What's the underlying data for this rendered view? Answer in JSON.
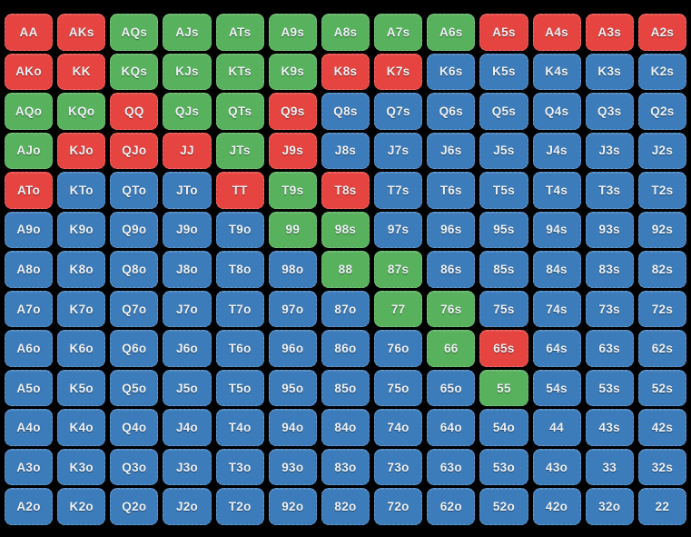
{
  "colors": {
    "background": "#000000",
    "text": "#edf1f5",
    "red": "#e64440",
    "green": "#58b15d",
    "blue": "#3d7cba"
  },
  "chart_data": {
    "type": "heatmap",
    "description": "13x13 poker starting-hand range matrix; pairs on the diagonal, suited hands above, offsuit hands below; each cell colored by action category",
    "x_labels": [
      "A",
      "K",
      "Q",
      "J",
      "T",
      "9",
      "8",
      "7",
      "6",
      "5",
      "4",
      "3",
      "2"
    ],
    "y_labels": [
      "A",
      "K",
      "Q",
      "J",
      "T",
      "9",
      "8",
      "7",
      "6",
      "5",
      "4",
      "3",
      "2"
    ],
    "category_colors": {
      "red": "#e64440",
      "green": "#58b15d",
      "blue": "#3d7cba"
    },
    "cells": [
      [
        {
          "label": "AA",
          "color": "red"
        },
        {
          "label": "AKs",
          "color": "red"
        },
        {
          "label": "AQs",
          "color": "green"
        },
        {
          "label": "AJs",
          "color": "green"
        },
        {
          "label": "ATs",
          "color": "green"
        },
        {
          "label": "A9s",
          "color": "green"
        },
        {
          "label": "A8s",
          "color": "green"
        },
        {
          "label": "A7s",
          "color": "green"
        },
        {
          "label": "A6s",
          "color": "green"
        },
        {
          "label": "A5s",
          "color": "red"
        },
        {
          "label": "A4s",
          "color": "red"
        },
        {
          "label": "A3s",
          "color": "red"
        },
        {
          "label": "A2s",
          "color": "red"
        }
      ],
      [
        {
          "label": "AKo",
          "color": "red"
        },
        {
          "label": "KK",
          "color": "red"
        },
        {
          "label": "KQs",
          "color": "green"
        },
        {
          "label": "KJs",
          "color": "green"
        },
        {
          "label": "KTs",
          "color": "green"
        },
        {
          "label": "K9s",
          "color": "green"
        },
        {
          "label": "K8s",
          "color": "red"
        },
        {
          "label": "K7s",
          "color": "red"
        },
        {
          "label": "K6s",
          "color": "blue"
        },
        {
          "label": "K5s",
          "color": "blue"
        },
        {
          "label": "K4s",
          "color": "blue"
        },
        {
          "label": "K3s",
          "color": "blue"
        },
        {
          "label": "K2s",
          "color": "blue"
        }
      ],
      [
        {
          "label": "AQo",
          "color": "green"
        },
        {
          "label": "KQo",
          "color": "green"
        },
        {
          "label": "QQ",
          "color": "red"
        },
        {
          "label": "QJs",
          "color": "green"
        },
        {
          "label": "QTs",
          "color": "green"
        },
        {
          "label": "Q9s",
          "color": "red"
        },
        {
          "label": "Q8s",
          "color": "blue"
        },
        {
          "label": "Q7s",
          "color": "blue"
        },
        {
          "label": "Q6s",
          "color": "blue"
        },
        {
          "label": "Q5s",
          "color": "blue"
        },
        {
          "label": "Q4s",
          "color": "blue"
        },
        {
          "label": "Q3s",
          "color": "blue"
        },
        {
          "label": "Q2s",
          "color": "blue"
        }
      ],
      [
        {
          "label": "AJo",
          "color": "green"
        },
        {
          "label": "KJo",
          "color": "red"
        },
        {
          "label": "QJo",
          "color": "red"
        },
        {
          "label": "JJ",
          "color": "red"
        },
        {
          "label": "JTs",
          "color": "green"
        },
        {
          "label": "J9s",
          "color": "red"
        },
        {
          "label": "J8s",
          "color": "blue"
        },
        {
          "label": "J7s",
          "color": "blue"
        },
        {
          "label": "J6s",
          "color": "blue"
        },
        {
          "label": "J5s",
          "color": "blue"
        },
        {
          "label": "J4s",
          "color": "blue"
        },
        {
          "label": "J3s",
          "color": "blue"
        },
        {
          "label": "J2s",
          "color": "blue"
        }
      ],
      [
        {
          "label": "ATo",
          "color": "red"
        },
        {
          "label": "KTo",
          "color": "blue"
        },
        {
          "label": "QTo",
          "color": "blue"
        },
        {
          "label": "JTo",
          "color": "blue"
        },
        {
          "label": "TT",
          "color": "red"
        },
        {
          "label": "T9s",
          "color": "green"
        },
        {
          "label": "T8s",
          "color": "red"
        },
        {
          "label": "T7s",
          "color": "blue"
        },
        {
          "label": "T6s",
          "color": "blue"
        },
        {
          "label": "T5s",
          "color": "blue"
        },
        {
          "label": "T4s",
          "color": "blue"
        },
        {
          "label": "T3s",
          "color": "blue"
        },
        {
          "label": "T2s",
          "color": "blue"
        }
      ],
      [
        {
          "label": "A9o",
          "color": "blue"
        },
        {
          "label": "K9o",
          "color": "blue"
        },
        {
          "label": "Q9o",
          "color": "blue"
        },
        {
          "label": "J9o",
          "color": "blue"
        },
        {
          "label": "T9o",
          "color": "blue"
        },
        {
          "label": "99",
          "color": "green"
        },
        {
          "label": "98s",
          "color": "green"
        },
        {
          "label": "97s",
          "color": "blue"
        },
        {
          "label": "96s",
          "color": "blue"
        },
        {
          "label": "95s",
          "color": "blue"
        },
        {
          "label": "94s",
          "color": "blue"
        },
        {
          "label": "93s",
          "color": "blue"
        },
        {
          "label": "92s",
          "color": "blue"
        }
      ],
      [
        {
          "label": "A8o",
          "color": "blue"
        },
        {
          "label": "K8o",
          "color": "blue"
        },
        {
          "label": "Q8o",
          "color": "blue"
        },
        {
          "label": "J8o",
          "color": "blue"
        },
        {
          "label": "T8o",
          "color": "blue"
        },
        {
          "label": "98o",
          "color": "blue"
        },
        {
          "label": "88",
          "color": "green"
        },
        {
          "label": "87s",
          "color": "green"
        },
        {
          "label": "86s",
          "color": "blue"
        },
        {
          "label": "85s",
          "color": "blue"
        },
        {
          "label": "84s",
          "color": "blue"
        },
        {
          "label": "83s",
          "color": "blue"
        },
        {
          "label": "82s",
          "color": "blue"
        }
      ],
      [
        {
          "label": "A7o",
          "color": "blue"
        },
        {
          "label": "K7o",
          "color": "blue"
        },
        {
          "label": "Q7o",
          "color": "blue"
        },
        {
          "label": "J7o",
          "color": "blue"
        },
        {
          "label": "T7o",
          "color": "blue"
        },
        {
          "label": "97o",
          "color": "blue"
        },
        {
          "label": "87o",
          "color": "blue"
        },
        {
          "label": "77",
          "color": "green"
        },
        {
          "label": "76s",
          "color": "green"
        },
        {
          "label": "75s",
          "color": "blue"
        },
        {
          "label": "74s",
          "color": "blue"
        },
        {
          "label": "73s",
          "color": "blue"
        },
        {
          "label": "72s",
          "color": "blue"
        }
      ],
      [
        {
          "label": "A6o",
          "color": "blue"
        },
        {
          "label": "K6o",
          "color": "blue"
        },
        {
          "label": "Q6o",
          "color": "blue"
        },
        {
          "label": "J6o",
          "color": "blue"
        },
        {
          "label": "T6o",
          "color": "blue"
        },
        {
          "label": "96o",
          "color": "blue"
        },
        {
          "label": "86o",
          "color": "blue"
        },
        {
          "label": "76o",
          "color": "blue"
        },
        {
          "label": "66",
          "color": "green"
        },
        {
          "label": "65s",
          "color": "red"
        },
        {
          "label": "64s",
          "color": "blue"
        },
        {
          "label": "63s",
          "color": "blue"
        },
        {
          "label": "62s",
          "color": "blue"
        }
      ],
      [
        {
          "label": "A5o",
          "color": "blue"
        },
        {
          "label": "K5o",
          "color": "blue"
        },
        {
          "label": "Q5o",
          "color": "blue"
        },
        {
          "label": "J5o",
          "color": "blue"
        },
        {
          "label": "T5o",
          "color": "blue"
        },
        {
          "label": "95o",
          "color": "blue"
        },
        {
          "label": "85o",
          "color": "blue"
        },
        {
          "label": "75o",
          "color": "blue"
        },
        {
          "label": "65o",
          "color": "blue"
        },
        {
          "label": "55",
          "color": "green"
        },
        {
          "label": "54s",
          "color": "blue"
        },
        {
          "label": "53s",
          "color": "blue"
        },
        {
          "label": "52s",
          "color": "blue"
        }
      ],
      [
        {
          "label": "A4o",
          "color": "blue"
        },
        {
          "label": "K4o",
          "color": "blue"
        },
        {
          "label": "Q4o",
          "color": "blue"
        },
        {
          "label": "J4o",
          "color": "blue"
        },
        {
          "label": "T4o",
          "color": "blue"
        },
        {
          "label": "94o",
          "color": "blue"
        },
        {
          "label": "84o",
          "color": "blue"
        },
        {
          "label": "74o",
          "color": "blue"
        },
        {
          "label": "64o",
          "color": "blue"
        },
        {
          "label": "54o",
          "color": "blue"
        },
        {
          "label": "44",
          "color": "blue"
        },
        {
          "label": "43s",
          "color": "blue"
        },
        {
          "label": "42s",
          "color": "blue"
        }
      ],
      [
        {
          "label": "A3o",
          "color": "blue"
        },
        {
          "label": "K3o",
          "color": "blue"
        },
        {
          "label": "Q3o",
          "color": "blue"
        },
        {
          "label": "J3o",
          "color": "blue"
        },
        {
          "label": "T3o",
          "color": "blue"
        },
        {
          "label": "93o",
          "color": "blue"
        },
        {
          "label": "83o",
          "color": "blue"
        },
        {
          "label": "73o",
          "color": "blue"
        },
        {
          "label": "63o",
          "color": "blue"
        },
        {
          "label": "53o",
          "color": "blue"
        },
        {
          "label": "43o",
          "color": "blue"
        },
        {
          "label": "33",
          "color": "blue"
        },
        {
          "label": "32s",
          "color": "blue"
        }
      ],
      [
        {
          "label": "A2o",
          "color": "blue"
        },
        {
          "label": "K2o",
          "color": "blue"
        },
        {
          "label": "Q2o",
          "color": "blue"
        },
        {
          "label": "J2o",
          "color": "blue"
        },
        {
          "label": "T2o",
          "color": "blue"
        },
        {
          "label": "92o",
          "color": "blue"
        },
        {
          "label": "82o",
          "color": "blue"
        },
        {
          "label": "72o",
          "color": "blue"
        },
        {
          "label": "62o",
          "color": "blue"
        },
        {
          "label": "52o",
          "color": "blue"
        },
        {
          "label": "42o",
          "color": "blue"
        },
        {
          "label": "32o",
          "color": "blue"
        },
        {
          "label": "22",
          "color": "blue"
        }
      ]
    ]
  }
}
